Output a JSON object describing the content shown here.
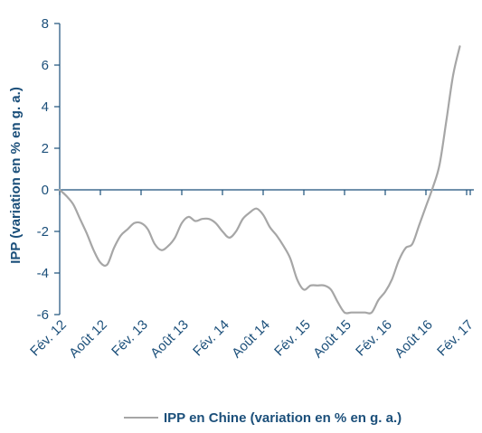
{
  "chart_data": {
    "type": "line",
    "title": "",
    "ylabel": "IPP (variation en % en g. a.)",
    "xlabel": "",
    "ylim": [
      -6,
      8
    ],
    "yticks": [
      8,
      6,
      4,
      2,
      0,
      -2,
      -4,
      -6
    ],
    "xticks": [
      "Fév. 12",
      "Août 12",
      "Fév. 13",
      "Août 13",
      "Fév. 14",
      "Août 14",
      "Fév. 15",
      "Août 15",
      "Fév. 16",
      "Août 16",
      "Fév. 17"
    ],
    "grid": false,
    "legend": "bottom",
    "colors": {
      "axis": "#1b4f7a",
      "series": "#a6a6a6",
      "text": "#1b4f7a"
    },
    "series": [
      {
        "name": "IPP en Chine (variation en % en g. a.)",
        "x": [
          "2012-02",
          "2012-03",
          "2012-04",
          "2012-05",
          "2012-06",
          "2012-07",
          "2012-08",
          "2012-09",
          "2012-10",
          "2012-11",
          "2012-12",
          "2013-01",
          "2013-02",
          "2013-03",
          "2013-04",
          "2013-05",
          "2013-06",
          "2013-07",
          "2013-08",
          "2013-09",
          "2013-10",
          "2013-11",
          "2013-12",
          "2014-01",
          "2014-02",
          "2014-03",
          "2014-04",
          "2014-05",
          "2014-06",
          "2014-07",
          "2014-08",
          "2014-09",
          "2014-10",
          "2014-11",
          "2014-12",
          "2015-01",
          "2015-02",
          "2015-03",
          "2015-04",
          "2015-05",
          "2015-06",
          "2015-07",
          "2015-08",
          "2015-09",
          "2015-10",
          "2015-11",
          "2015-12",
          "2016-01",
          "2016-02",
          "2016-03",
          "2016-04",
          "2016-05",
          "2016-06",
          "2016-07",
          "2016-08",
          "2016-09",
          "2016-10",
          "2016-11",
          "2016-12",
          "2017-01",
          "2017-02"
        ],
        "values": [
          0.0,
          -0.3,
          -0.7,
          -1.4,
          -2.1,
          -2.9,
          -3.5,
          -3.6,
          -2.8,
          -2.2,
          -1.9,
          -1.6,
          -1.6,
          -1.9,
          -2.6,
          -2.9,
          -2.7,
          -2.3,
          -1.6,
          -1.3,
          -1.5,
          -1.4,
          -1.4,
          -1.6,
          -2.0,
          -2.3,
          -2.0,
          -1.4,
          -1.1,
          -0.9,
          -1.2,
          -1.8,
          -2.2,
          -2.7,
          -3.3,
          -4.3,
          -4.8,
          -4.6,
          -4.6,
          -4.6,
          -4.8,
          -5.4,
          -5.9,
          -5.9,
          -5.9,
          -5.9,
          -5.9,
          -5.3,
          -4.9,
          -4.3,
          -3.4,
          -2.8,
          -2.6,
          -1.7,
          -0.8,
          0.1,
          1.2,
          3.3,
          5.5,
          6.9,
          null
        ]
      }
    ]
  }
}
